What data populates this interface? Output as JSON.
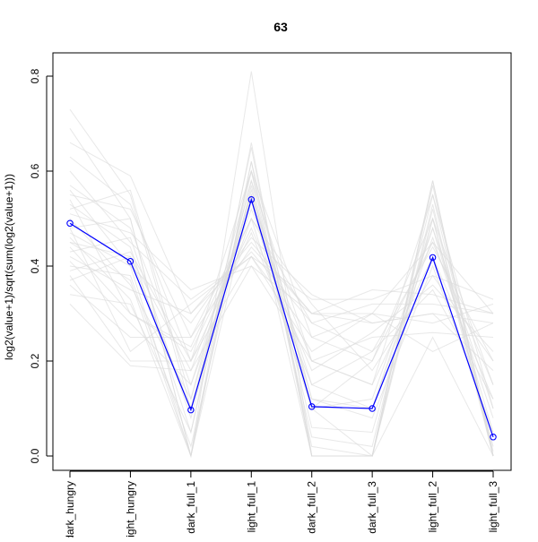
{
  "chart_data": {
    "type": "line",
    "title": "63",
    "xlabel": "",
    "ylabel": "log2(value+1)/sqrt(sum(log2(value+1)))",
    "categories": [
      "dark_hungry",
      "light_hungry",
      "dark_full_1",
      "light_full_1",
      "dark_full_2",
      "dark_full_3",
      "light_full_2",
      "light_full_3"
    ],
    "ylim": [
      0,
      0.8
    ],
    "yticks": [
      0.0,
      0.2,
      0.4,
      0.6,
      0.8
    ],
    "ytick_labels": [
      "0.0",
      "0.2",
      "0.4",
      "0.6",
      "0.8"
    ],
    "grid": false,
    "legend": "none",
    "colors": {
      "highlight": "#0000ff",
      "background": "#dcdcdc"
    },
    "series": [
      {
        "values": [
          0.49,
          0.41,
          0.097,
          0.54,
          0.104,
          0.1,
          0.418,
          0.04
        ],
        "color": "#0000ff",
        "highlight": true
      },
      {
        "values": [
          0.73,
          0.55,
          0.1,
          0.58,
          0.2,
          0.15,
          0.55,
          0.1
        ],
        "color": "#dcdcdc"
      },
      {
        "values": [
          0.69,
          0.5,
          0.0,
          0.62,
          0.1,
          0.0,
          0.58,
          0.0
        ],
        "color": "#dcdcdc"
      },
      {
        "values": [
          0.66,
          0.59,
          0.3,
          0.45,
          0.3,
          0.3,
          0.45,
          0.3
        ],
        "color": "#dcdcdc"
      },
      {
        "values": [
          0.63,
          0.53,
          0.2,
          0.6,
          0.25,
          0.2,
          0.5,
          0.15
        ],
        "color": "#dcdcdc"
      },
      {
        "values": [
          0.6,
          0.45,
          0.33,
          0.42,
          0.33,
          0.33,
          0.38,
          0.33
        ],
        "color": "#dcdcdc"
      },
      {
        "values": [
          0.57,
          0.48,
          0.15,
          0.55,
          0.15,
          0.1,
          0.48,
          0.05
        ],
        "color": "#dcdcdc"
      },
      {
        "values": [
          0.55,
          0.52,
          0.25,
          0.5,
          0.28,
          0.22,
          0.44,
          0.2
        ],
        "color": "#dcdcdc"
      },
      {
        "values": [
          0.53,
          0.44,
          0.05,
          0.65,
          0.0,
          0.0,
          0.52,
          0.0
        ],
        "color": "#dcdcdc"
      },
      {
        "values": [
          0.51,
          0.47,
          0.35,
          0.4,
          0.3,
          0.35,
          0.34,
          0.3
        ],
        "color": "#dcdcdc"
      },
      {
        "values": [
          0.5,
          0.36,
          0.12,
          0.6,
          0.12,
          0.08,
          0.4,
          0.05
        ],
        "color": "#dcdcdc"
      },
      {
        "values": [
          0.48,
          0.5,
          0.0,
          0.81,
          0.0,
          0.0,
          0.25,
          0.0
        ],
        "color": "#dcdcdc"
      },
      {
        "values": [
          0.47,
          0.4,
          0.28,
          0.46,
          0.34,
          0.28,
          0.3,
          0.28
        ],
        "color": "#dcdcdc"
      },
      {
        "values": [
          0.46,
          0.33,
          0.0,
          0.55,
          0.0,
          0.0,
          0.57,
          0.0
        ],
        "color": "#dcdcdc"
      },
      {
        "values": [
          0.45,
          0.42,
          0.18,
          0.52,
          0.2,
          0.15,
          0.42,
          0.12
        ],
        "color": "#dcdcdc"
      },
      {
        "values": [
          0.44,
          0.3,
          0.22,
          0.48,
          0.18,
          0.26,
          0.36,
          0.22
        ],
        "color": "#dcdcdc"
      },
      {
        "values": [
          0.43,
          0.46,
          0.08,
          0.58,
          0.06,
          0.05,
          0.5,
          0.02
        ],
        "color": "#dcdcdc"
      },
      {
        "values": [
          0.42,
          0.35,
          0.3,
          0.43,
          0.28,
          0.32,
          0.32,
          0.3
        ],
        "color": "#dcdcdc"
      },
      {
        "values": [
          0.41,
          0.28,
          0.15,
          0.5,
          0.1,
          0.2,
          0.45,
          0.15
        ],
        "color": "#dcdcdc"
      },
      {
        "values": [
          0.4,
          0.38,
          0.02,
          0.57,
          0.04,
          0.02,
          0.55,
          0.01
        ],
        "color": "#dcdcdc"
      },
      {
        "values": [
          0.38,
          0.2,
          0.2,
          0.42,
          0.22,
          0.3,
          0.28,
          0.32
        ],
        "color": "#dcdcdc"
      },
      {
        "values": [
          0.37,
          0.42,
          0.1,
          0.56,
          0.12,
          0.1,
          0.46,
          0.08
        ],
        "color": "#dcdcdc"
      },
      {
        "values": [
          0.36,
          0.25,
          0.25,
          0.44,
          0.3,
          0.28,
          0.3,
          0.18
        ],
        "color": "#dcdcdc"
      },
      {
        "values": [
          0.34,
          0.32,
          0.05,
          0.6,
          0.02,
          0.0,
          0.53,
          0.0
        ],
        "color": "#dcdcdc"
      },
      {
        "values": [
          0.32,
          0.19,
          0.18,
          0.4,
          0.2,
          0.25,
          0.26,
          0.25
        ],
        "color": "#dcdcdc"
      },
      {
        "values": [
          0.56,
          0.4,
          0.0,
          0.62,
          0.0,
          0.0,
          0.58,
          0.0
        ],
        "color": "#dcdcdc"
      },
      {
        "values": [
          0.54,
          0.3,
          0.23,
          0.5,
          0.32,
          0.18,
          0.38,
          0.2
        ],
        "color": "#dcdcdc"
      },
      {
        "values": [
          0.52,
          0.56,
          0.12,
          0.55,
          0.1,
          0.12,
          0.48,
          0.1
        ],
        "color": "#dcdcdc"
      },
      {
        "values": [
          0.48,
          0.22,
          0.32,
          0.42,
          0.25,
          0.3,
          0.22,
          0.28
        ],
        "color": "#dcdcdc"
      },
      {
        "values": [
          0.45,
          0.37,
          0.0,
          0.66,
          0.0,
          0.0,
          0.5,
          0.0
        ],
        "color": "#dcdcdc"
      },
      {
        "values": [
          0.39,
          0.43,
          0.2,
          0.47,
          0.15,
          0.22,
          0.35,
          0.12
        ],
        "color": "#dcdcdc"
      }
    ]
  }
}
